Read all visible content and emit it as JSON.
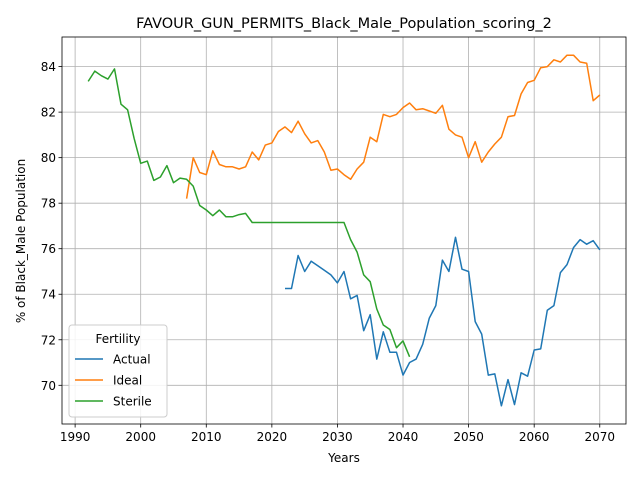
{
  "chart_data": {
    "type": "line",
    "title": "FAVOUR_GUN_PERMITS_Black_Male_Population_scoring_2",
    "xlabel": "Years",
    "ylabel": "% of Black_Male Population",
    "xlim": [
      1988,
      2074
    ],
    "ylim": [
      68.3,
      85.3
    ],
    "xticks": [
      1990,
      2000,
      2010,
      2020,
      2030,
      2040,
      2050,
      2060,
      2070
    ],
    "yticks": [
      70,
      72,
      74,
      76,
      78,
      80,
      82,
      84
    ],
    "grid": true,
    "legend": {
      "title": "Fertility",
      "placement": "lower-left"
    },
    "series": [
      {
        "name": "Actual",
        "color": "#1f77b4",
        "x": [
          2022,
          2023,
          2024,
          2025,
          2026,
          2027,
          2028,
          2029,
          2030,
          2031,
          2032,
          2033,
          2034,
          2035,
          2036,
          2037,
          2038,
          2039,
          2040,
          2041,
          2042,
          2043,
          2044,
          2045,
          2046,
          2047,
          2048,
          2049,
          2050,
          2051,
          2052,
          2053,
          2054,
          2055,
          2056,
          2057,
          2058,
          2059,
          2060,
          2061,
          2062,
          2063,
          2064,
          2065,
          2066,
          2067,
          2068,
          2069,
          2070
        ],
        "y": [
          74.25,
          74.25,
          75.7,
          75.0,
          75.45,
          75.25,
          75.05,
          74.85,
          74.5,
          75.0,
          73.8,
          73.95,
          72.4,
          73.1,
          71.15,
          72.35,
          71.45,
          71.45,
          70.45,
          71.0,
          71.15,
          71.8,
          72.95,
          73.5,
          75.5,
          75.0,
          76.5,
          75.1,
          75.0,
          72.8,
          72.25,
          70.45,
          70.5,
          69.1,
          70.25,
          69.15,
          70.55,
          70.4,
          71.55,
          71.6,
          73.3,
          73.5,
          74.95,
          75.3,
          76.05,
          76.4,
          76.2,
          76.35,
          75.95
        ]
      },
      {
        "name": "Ideal",
        "color": "#ff7f0e",
        "x": [
          2007,
          2008,
          2009,
          2010,
          2011,
          2012,
          2013,
          2014,
          2015,
          2016,
          2017,
          2018,
          2019,
          2020,
          2021,
          2022,
          2023,
          2024,
          2025,
          2026,
          2027,
          2028,
          2029,
          2030,
          2031,
          2032,
          2033,
          2034,
          2035,
          2036,
          2037,
          2038,
          2039,
          2040,
          2041,
          2042,
          2043,
          2044,
          2045,
          2046,
          2047,
          2048,
          2049,
          2050,
          2051,
          2052,
          2053,
          2054,
          2055,
          2056,
          2057,
          2058,
          2059,
          2060,
          2061,
          2062,
          2063,
          2064,
          2065,
          2066,
          2067,
          2068,
          2069,
          2070
        ],
        "y": [
          78.2,
          80.0,
          79.35,
          79.25,
          80.3,
          79.7,
          79.6,
          79.6,
          79.5,
          79.6,
          80.25,
          79.9,
          80.55,
          80.65,
          81.15,
          81.35,
          81.1,
          81.6,
          81.05,
          80.65,
          80.75,
          80.25,
          79.45,
          79.5,
          79.25,
          79.05,
          79.5,
          79.8,
          80.9,
          80.7,
          81.9,
          81.8,
          81.9,
          82.2,
          82.4,
          82.1,
          82.15,
          82.05,
          81.95,
          82.3,
          81.25,
          81.0,
          80.9,
          80.0,
          80.7,
          79.8,
          80.25,
          80.6,
          80.9,
          81.8,
          81.85,
          82.8,
          83.3,
          83.4,
          83.95,
          84.0,
          84.3,
          84.2,
          84.5,
          84.5,
          84.2,
          84.15,
          82.5,
          82.75
        ]
      },
      {
        "name": "Sterile",
        "color": "#2ca02c",
        "x": [
          1992,
          1993,
          1994,
          1995,
          1996,
          1997,
          1998,
          1999,
          2000,
          2001,
          2002,
          2003,
          2004,
          2005,
          2006,
          2007,
          2008,
          2009,
          2010,
          2011,
          2012,
          2013,
          2014,
          2015,
          2016,
          2017,
          2018,
          2019,
          2020,
          2021,
          2022,
          2023,
          2024,
          2025,
          2026,
          2027,
          2028,
          2029,
          2030,
          2031,
          2032,
          2033,
          2034,
          2035,
          2036,
          2037,
          2038,
          2039,
          2040,
          2041
        ],
        "y": [
          83.35,
          83.8,
          83.6,
          83.45,
          83.9,
          82.35,
          82.1,
          80.85,
          79.75,
          79.85,
          79.0,
          79.15,
          79.65,
          78.9,
          79.1,
          79.05,
          78.75,
          77.9,
          77.7,
          77.45,
          77.7,
          77.4,
          77.4,
          77.5,
          77.55,
          77.15,
          77.15,
          77.15,
          77.15,
          77.15,
          77.15,
          77.15,
          77.15,
          77.15,
          77.15,
          77.15,
          77.15,
          77.15,
          77.15,
          77.15,
          76.4,
          75.85,
          74.85,
          74.55,
          73.35,
          72.65,
          72.45,
          71.65,
          71.95,
          71.25
        ]
      }
    ]
  }
}
